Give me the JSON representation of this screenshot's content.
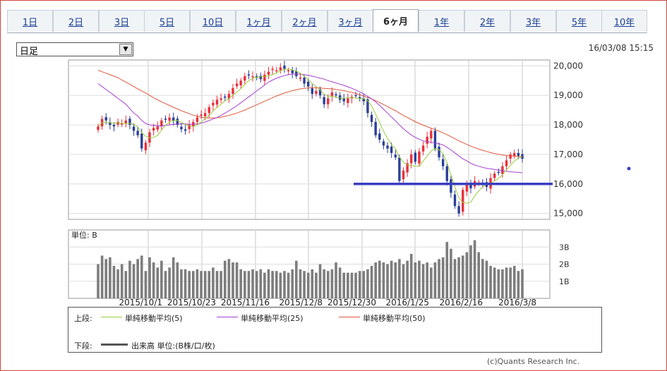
{
  "tabs": [
    {
      "label": "1日",
      "active": false
    },
    {
      "label": "2日",
      "active": false
    },
    {
      "label": "3日",
      "active": false
    },
    {
      "label": "5日",
      "active": false
    },
    {
      "label": "10日",
      "active": false
    },
    {
      "label": "1ヶ月",
      "active": false
    },
    {
      "label": "2ヶ月",
      "active": false
    },
    {
      "label": "3ヶ月",
      "active": false
    },
    {
      "label": "6ヶ月",
      "active": true
    },
    {
      "label": "1年",
      "active": false
    },
    {
      "label": "2年",
      "active": false
    },
    {
      "label": "3年",
      "active": false
    },
    {
      "label": "5年",
      "active": false
    },
    {
      "label": "10年",
      "active": false
    }
  ],
  "period_select": {
    "value": "日足"
  },
  "timestamp": "16/03/08 15:15",
  "legend": {
    "upper_label": "上段:",
    "lower_label": "下段:",
    "ma5": "単純移動平均(5)",
    "ma25": "単純移動平均(25)",
    "ma50": "単純移動平均(50)",
    "volume": "出来高 単位:(B株/口/枚)"
  },
  "credit": "(c)Quants Research Inc.",
  "colors": {
    "up": "#e8303c",
    "down": "#2a3f9a",
    "ma5": "#9acc3b",
    "ma25": "#a43fd0",
    "ma50": "#e0573a",
    "support": "#3a3fc0",
    "volume": "#7d7d7d"
  },
  "chart_data": [
    {
      "type": "candlestick",
      "title": "",
      "x_ticks": [
        "2015/10/1",
        "2015/10/23",
        "2015/11/16",
        "2015/12/8",
        "2015/12/30",
        "2016/1/25",
        "2016/2/16",
        "2016/3/8"
      ],
      "ylim": [
        14800,
        20200
      ],
      "y_ticks": [
        "15,000",
        "16,000",
        "17,000",
        "18,000",
        "19,000",
        "20,000"
      ],
      "price_ticks": [
        15000,
        16000,
        17000,
        18000,
        19000,
        20000
      ],
      "support_level": 16000,
      "sample_series": {
        "close": [
          17950,
          18200,
          18150,
          18000,
          17950,
          18100,
          18050,
          18150,
          18000,
          17800,
          17650,
          17200,
          17400,
          17750,
          17900,
          17950,
          18150,
          18200,
          18250,
          18150,
          18000,
          17850,
          17800,
          18000,
          18100,
          18250,
          18350,
          18400,
          18600,
          18750,
          18850,
          18900,
          18950,
          19050,
          19250,
          19400,
          19500,
          19650,
          19700,
          19650,
          19600,
          19550,
          19700,
          19800,
          19900,
          19850,
          19950,
          19900,
          19850,
          19750,
          19650,
          19600,
          19400,
          19300,
          19050,
          19150,
          19000,
          18700,
          18900,
          19100,
          19000,
          18850,
          18800,
          18900,
          18950,
          19000,
          18900,
          18800,
          18400,
          18100,
          17650,
          17500,
          17300,
          17200,
          17050,
          16900,
          16100,
          16450,
          16700,
          17000,
          16750,
          17100,
          17300,
          17600,
          17800,
          17200,
          16900,
          16600,
          16100,
          15700,
          15250,
          15000,
          15800,
          16000,
          15850,
          16100,
          16050,
          16000,
          15900,
          16200,
          16350,
          16400,
          16600,
          16800,
          17000,
          17050,
          16950,
          16850
        ],
        "ma5": [
          17950,
          18075,
          18100,
          18075,
          18050,
          18080,
          18050,
          18050,
          18050,
          18020,
          17930,
          17740,
          17620,
          17560,
          17580,
          17640,
          17830,
          17990,
          18090,
          18140,
          18150,
          18090,
          18010,
          17960,
          17950,
          18000,
          18100,
          18220,
          18320,
          18470,
          18590,
          18700,
          18810,
          18890,
          19010,
          19110,
          19230,
          19370,
          19500,
          19580,
          19620,
          19630,
          19640,
          19660,
          19710,
          19760,
          19840,
          19880,
          19890,
          19860,
          19820,
          19750,
          19650,
          19540,
          19400,
          19300,
          19180,
          19040,
          18960,
          18970,
          18940,
          18910,
          18890,
          18930,
          18920,
          18910,
          18890,
          18890,
          18810,
          18640,
          18370,
          18090,
          17790,
          17540,
          17340,
          17190,
          16910,
          16740,
          16640,
          16630,
          16600,
          16600,
          16770,
          16950,
          17110,
          17200,
          17160,
          17020,
          16720,
          16300,
          15910,
          15530,
          15370,
          15350,
          15380,
          15600,
          15760,
          15910,
          15970,
          16030,
          16100,
          16190,
          16310,
          16470,
          16630,
          16770,
          16880,
          16930
        ],
        "ma25": [
          19400,
          19300,
          19200,
          19100,
          19000,
          18900,
          18800,
          18700,
          18550,
          18400,
          18300,
          18150,
          18050,
          18000,
          17980,
          17970,
          17960,
          17980,
          18000,
          18020,
          18030,
          18040,
          18030,
          18020,
          18020,
          18030,
          18060,
          18100,
          18150,
          18200,
          18250,
          18320,
          18400,
          18480,
          18560,
          18650,
          18750,
          18850,
          18950,
          19050,
          19150,
          19250,
          19350,
          19450,
          19520,
          19580,
          19630,
          19670,
          19700,
          19720,
          19730,
          19720,
          19700,
          19680,
          19650,
          19620,
          19580,
          19550,
          19500,
          19460,
          19420,
          19380,
          19340,
          19290,
          19240,
          19180,
          19120,
          19050,
          18970,
          18880,
          18780,
          18660,
          18530,
          18400,
          18270,
          18140,
          18000,
          17870,
          17760,
          17660,
          17580,
          17510,
          17460,
          17430,
          17410,
          17390,
          17360,
          17320,
          17240,
          17150,
          17050,
          16950,
          16850,
          16780,
          16700,
          16640,
          16600,
          16560,
          16530,
          16510,
          16490,
          16470,
          16450,
          16430,
          16410,
          16400,
          16390,
          16380
        ],
        "ma50": [
          19850,
          19800,
          19750,
          19700,
          19650,
          19600,
          19520,
          19450,
          19380,
          19300,
          19220,
          19150,
          19080,
          19000,
          18920,
          18850,
          18780,
          18720,
          18660,
          18600,
          18540,
          18480,
          18430,
          18380,
          18330,
          18290,
          18260,
          18240,
          18230,
          18230,
          18240,
          18260,
          18290,
          18320,
          18360,
          18400,
          18450,
          18500,
          18560,
          18620,
          18680,
          18740,
          18800,
          18860,
          18920,
          18980,
          19030,
          19080,
          19120,
          19160,
          19190,
          19220,
          19240,
          19250,
          19260,
          19260,
          19250,
          19240,
          19230,
          19220,
          19200,
          19180,
          19160,
          19130,
          19100,
          19060,
          19020,
          18980,
          18930,
          18880,
          18820,
          18760,
          18690,
          18620,
          18550,
          18480,
          18400,
          18320,
          18250,
          18180,
          18110,
          18050,
          17990,
          17940,
          17890,
          17840,
          17790,
          17730,
          17670,
          17600,
          17530,
          17460,
          17400,
          17340,
          17280,
          17230,
          17180,
          17140,
          17100,
          17060,
          17030,
          17000,
          16980,
          16960,
          16950,
          16940,
          16930,
          16920
        ]
      }
    },
    {
      "type": "bar",
      "title": "",
      "unit_label": "単位: B",
      "ylim": [
        0,
        4
      ],
      "y_ticks": [
        "1B",
        "2B",
        "3B"
      ],
      "volume_ticks": [
        1,
        2,
        3
      ],
      "values": [
        2.0,
        2.5,
        2.3,
        2.4,
        1.9,
        1.7,
        2.0,
        1.6,
        2.2,
        2.0,
        2.3,
        2.5,
        1.6,
        2.4,
        2.1,
        1.8,
        2.2,
        1.6,
        1.8,
        2.4,
        2.1,
        1.7,
        1.7,
        1.6,
        1.6,
        1.7,
        1.6,
        1.6,
        1.6,
        1.8,
        1.6,
        1.6,
        2.2,
        2.3,
        2.1,
        2.1,
        1.7,
        1.6,
        1.6,
        1.7,
        1.6,
        1.7,
        1.5,
        1.7,
        1.6,
        1.6,
        1.5,
        1.6,
        1.5,
        1.7,
        2.2,
        1.7,
        1.6,
        1.5,
        1.7,
        1.5,
        2.0,
        1.7,
        1.6,
        1.7,
        2.1,
        1.8,
        1.5,
        1.5,
        1.5,
        1.5,
        1.6,
        1.6,
        1.7,
        1.9,
        2.1,
        2.2,
        2.1,
        2.0,
        2.2,
        2.1,
        2.3,
        2.0,
        2.2,
        2.6,
        2.1,
        2.2,
        2.0,
        2.1,
        1.8,
        2.1,
        2.3,
        2.4,
        3.3,
        2.9,
        2.3,
        2.4,
        2.5,
        2.7,
        3.1,
        3.4,
        2.7,
        2.3,
        2.2,
        1.9,
        1.8,
        1.7,
        1.7,
        1.8,
        1.8,
        1.9,
        1.6,
        1.7
      ]
    }
  ]
}
